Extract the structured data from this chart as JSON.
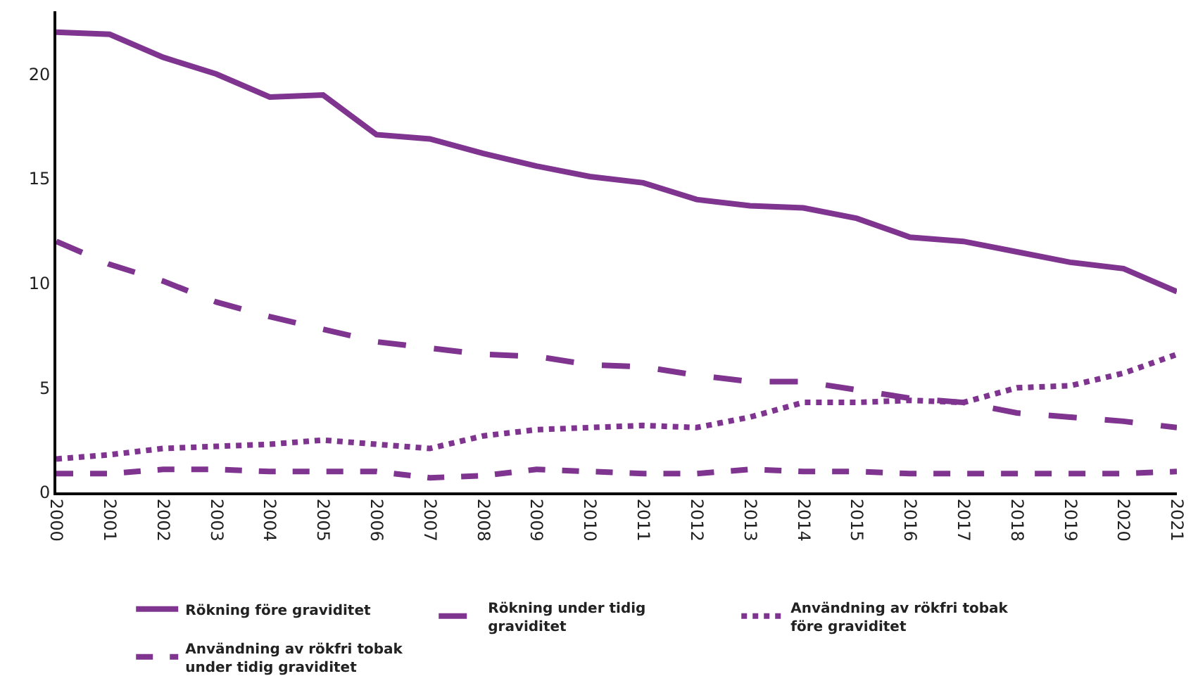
{
  "chart_data": {
    "type": "line",
    "x": [
      2000,
      2001,
      2002,
      2003,
      2004,
      2005,
      2006,
      2007,
      2008,
      2009,
      2010,
      2011,
      2012,
      2013,
      2014,
      2015,
      2016,
      2017,
      2018,
      2019,
      2020,
      2021
    ],
    "xlim": [
      2000,
      2021
    ],
    "xticks": [
      2000,
      2001,
      2002,
      2003,
      2004,
      2005,
      2006,
      2007,
      2008,
      2009,
      2010,
      2011,
      2012,
      2013,
      2014,
      2015,
      2016,
      2017,
      2018,
      2019,
      2020,
      2021
    ],
    "ylim": [
      0,
      23
    ],
    "yticks": [
      0,
      5,
      10,
      15,
      20
    ],
    "legend": "bottom",
    "marker": "none",
    "series": [
      {
        "name": "Rökning före graviditet",
        "color": "#7f3590",
        "line_style": "solid",
        "values": [
          22.0,
          21.9,
          20.8,
          20.0,
          18.9,
          19.0,
          17.1,
          16.9,
          16.2,
          15.6,
          15.1,
          14.8,
          14.0,
          13.7,
          13.6,
          13.1,
          12.2,
          12.0,
          11.5,
          11.0,
          10.7,
          9.6
        ]
      },
      {
        "name": "Rökning under tidig graviditet",
        "color": "#7f3590",
        "line_style": "long dashed",
        "values": [
          12.0,
          10.9,
          10.1,
          9.1,
          8.4,
          7.8,
          7.2,
          6.9,
          6.6,
          6.5,
          6.1,
          6.0,
          5.6,
          5.3,
          5.3,
          4.9,
          4.5,
          4.3,
          3.8,
          3.6,
          3.4,
          3.1
        ]
      },
      {
        "name": "Användning av rökfri tobak före graviditet",
        "color": "#7f3590",
        "line_style": "dotted",
        "values": [
          1.6,
          1.8,
          2.1,
          2.2,
          2.3,
          2.5,
          2.3,
          2.1,
          2.7,
          3.0,
          3.1,
          3.2,
          3.1,
          3.6,
          4.3,
          4.3,
          4.4,
          4.3,
          5.0,
          5.1,
          5.7,
          6.6
        ]
      },
      {
        "name": "Användning av rökfri tobak under tidig graviditet",
        "color": "#7f3590",
        "line_style": "dashed",
        "values": [
          0.9,
          0.9,
          1.1,
          1.1,
          1.0,
          1.0,
          1.0,
          0.7,
          0.8,
          1.1,
          1.0,
          0.9,
          0.9,
          1.1,
          1.0,
          1.0,
          0.9,
          0.9,
          0.9,
          0.9,
          0.9,
          1.0
        ]
      }
    ]
  }
}
